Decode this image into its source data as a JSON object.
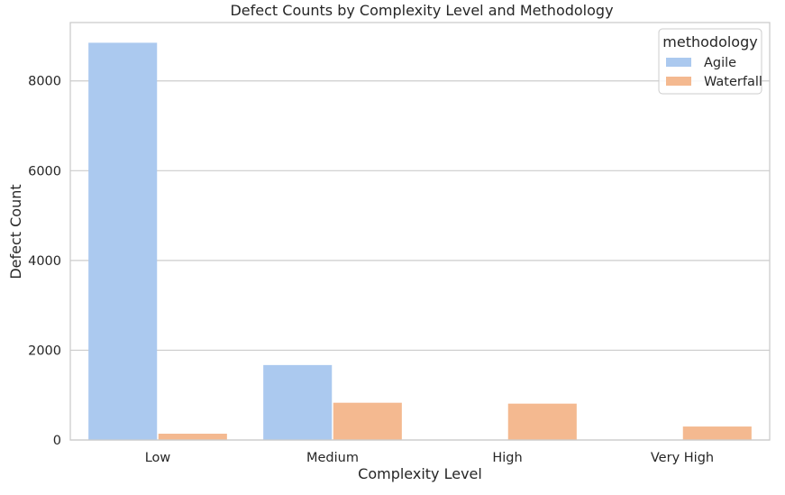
{
  "chart_data": {
    "type": "bar",
    "title": "Defect Counts by Complexity Level and Methodology",
    "xlabel": "Complexity Level",
    "ylabel": "Defect Count",
    "categories": [
      "Low",
      "Medium",
      "High",
      "Very High"
    ],
    "series": [
      {
        "name": "Agile",
        "color": "#abc9ef",
        "values": [
          8850,
          1670,
          0,
          0
        ]
      },
      {
        "name": "Waterfall",
        "color": "#f4b990",
        "values": [
          140,
          830,
          810,
          300
        ]
      }
    ],
    "ylim": [
      0,
      9300
    ],
    "yticks": [
      0,
      2000,
      4000,
      6000,
      8000
    ],
    "grid": true,
    "legend": {
      "title": "methodology",
      "position": "top-right"
    }
  }
}
